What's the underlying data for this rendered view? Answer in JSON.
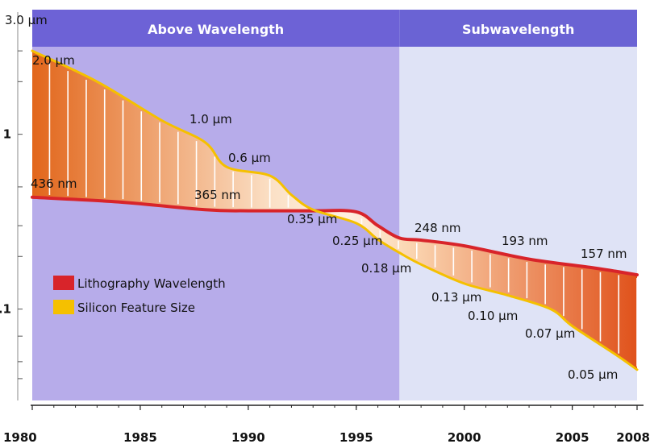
{
  "chart_data": {
    "type": "area",
    "title": "",
    "xlabel": "",
    "ylabel": "",
    "y_scale": "log",
    "xlim": [
      1980,
      2008
    ],
    "ylim": [
      0.03,
      5
    ],
    "x_ticks": [
      "1980",
      "1985",
      "1990",
      "1995",
      "2000",
      "2005",
      "2008"
    ],
    "y_ticks": [
      "1",
      ".1"
    ],
    "regions": [
      {
        "label": "Above Wavelength",
        "x_start": 1980,
        "x_end": 1997,
        "color": "#b7acea"
      },
      {
        "label": "Subwavelength",
        "x_start": 1997,
        "x_end": 2008,
        "color": "#dfe3f6"
      }
    ],
    "legend_position": "left",
    "series": [
      {
        "name": "Lithography Wavelength",
        "color": "#d8242a",
        "points": [
          {
            "x": 1980,
            "y": 0.436
          },
          {
            "x": 1984,
            "y": 0.41
          },
          {
            "x": 1988,
            "y": 0.37
          },
          {
            "x": 1990,
            "y": 0.365
          },
          {
            "x": 1993,
            "y": 0.365
          },
          {
            "x": 1995,
            "y": 0.36
          },
          {
            "x": 1996,
            "y": 0.3
          },
          {
            "x": 1997,
            "y": 0.255
          },
          {
            "x": 1998,
            "y": 0.248
          },
          {
            "x": 2000,
            "y": 0.23
          },
          {
            "x": 2003,
            "y": 0.193
          },
          {
            "x": 2006,
            "y": 0.172
          },
          {
            "x": 2008,
            "y": 0.157
          }
        ]
      },
      {
        "name": "Silicon Feature Size",
        "color": "#f5c000",
        "points": [
          {
            "x": 1980,
            "y": 3.0
          },
          {
            "x": 1983,
            "y": 2.0
          },
          {
            "x": 1986,
            "y": 1.2
          },
          {
            "x": 1988,
            "y": 0.9
          },
          {
            "x": 1989,
            "y": 0.65
          },
          {
            "x": 1991,
            "y": 0.58
          },
          {
            "x": 1992,
            "y": 0.45
          },
          {
            "x": 1993,
            "y": 0.37
          },
          {
            "x": 1995,
            "y": 0.31
          },
          {
            "x": 1996,
            "y": 0.25
          },
          {
            "x": 1997,
            "y": 0.21
          },
          {
            "x": 1998,
            "y": 0.18
          },
          {
            "x": 2000,
            "y": 0.14
          },
          {
            "x": 2002,
            "y": 0.12
          },
          {
            "x": 2004,
            "y": 0.1
          },
          {
            "x": 2005,
            "y": 0.08
          },
          {
            "x": 2007,
            "y": 0.055
          },
          {
            "x": 2008,
            "y": 0.045
          }
        ]
      }
    ],
    "annotations": [
      {
        "text": "3.0 µm",
        "x": 1980,
        "y": 3.0
      },
      {
        "text": "2.0 µm",
        "x": 1983,
        "y": 2.0
      },
      {
        "text": "1.0 µm",
        "x": 1988,
        "y": 1.0
      },
      {
        "text": "0.6 µm",
        "x": 1990,
        "y": 0.6
      },
      {
        "text": "436 nm",
        "x": 1980,
        "y": 0.436
      },
      {
        "text": "365 nm",
        "x": 1990,
        "y": 0.365
      },
      {
        "text": "0.35 µm",
        "x": 1993,
        "y": 0.35
      },
      {
        "text": "0.25 µm",
        "x": 1995,
        "y": 0.25
      },
      {
        "text": "0.18 µm",
        "x": 1998,
        "y": 0.18
      },
      {
        "text": "248 nm",
        "x": 1999,
        "y": 0.248
      },
      {
        "text": "193 nm",
        "x": 2003,
        "y": 0.193
      },
      {
        "text": "157 nm",
        "x": 2007,
        "y": 0.157
      },
      {
        "text": "0.13 µm",
        "x": 2000,
        "y": 0.13
      },
      {
        "text": "0.10 µm",
        "x": 2002,
        "y": 0.1
      },
      {
        "text": "0.07 µm",
        "x": 2004,
        "y": 0.07
      },
      {
        "text": "0.05 µm",
        "x": 2007,
        "y": 0.05
      }
    ]
  }
}
